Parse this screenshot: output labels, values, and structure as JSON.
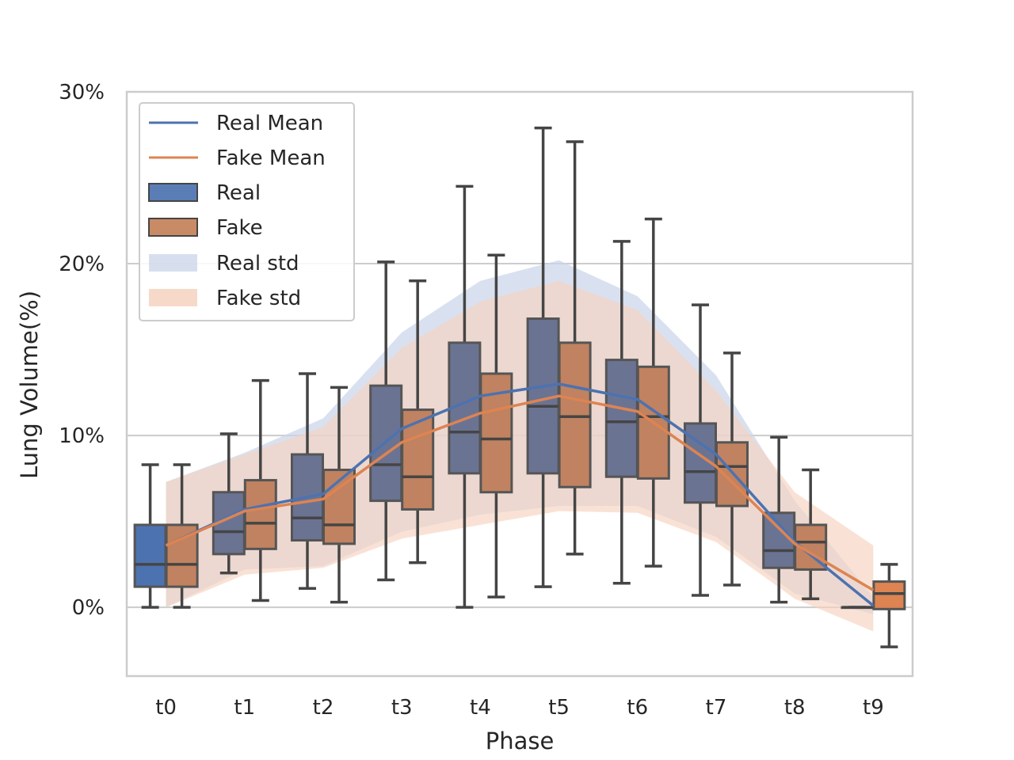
{
  "chart_data": {
    "type": "box",
    "xlabel": "Phase",
    "ylabel": "Lung Volume(%)",
    "ylim": [
      -4,
      30
    ],
    "yticks": [
      0,
      10,
      20,
      30
    ],
    "ytick_labels": [
      "0%",
      "10%",
      "20%",
      "30%"
    ],
    "categories": [
      "t0",
      "t1",
      "t2",
      "t3",
      "t4",
      "t5",
      "t6",
      "t7",
      "t8",
      "t9"
    ],
    "grid": true,
    "legend_position": "upper-left",
    "legend": [
      "Real Mean",
      "Fake Mean",
      "Real",
      "Fake",
      "Real std",
      "Fake std"
    ],
    "colors": {
      "real_box": "#6b7393",
      "real_box_t0": "#4c72b0",
      "fake_box": "#c08260",
      "fake_box_t9": "#dd8452",
      "real_line": "#4c72b0",
      "fake_line": "#dd8452",
      "real_std": "#c9d4ea",
      "fake_std": "#f6d2bf",
      "whisker": "#454545",
      "grid": "#cccccc"
    },
    "real_boxes": [
      {
        "min": 0.0,
        "q1": 1.2,
        "median": 2.5,
        "q3": 4.8,
        "max": 8.3
      },
      {
        "min": 2.0,
        "q1": 3.1,
        "median": 4.4,
        "q3": 6.7,
        "max": 10.1
      },
      {
        "min": 1.1,
        "q1": 3.9,
        "median": 5.2,
        "q3": 8.9,
        "max": 13.6
      },
      {
        "min": 1.6,
        "q1": 6.2,
        "median": 8.3,
        "q3": 12.9,
        "max": 20.1
      },
      {
        "min": 0.0,
        "q1": 7.8,
        "median": 10.2,
        "q3": 15.4,
        "max": 24.5
      },
      {
        "min": 1.2,
        "q1": 7.8,
        "median": 11.7,
        "q3": 16.8,
        "max": 27.9
      },
      {
        "min": 1.4,
        "q1": 7.6,
        "median": 10.8,
        "q3": 14.4,
        "max": 21.3
      },
      {
        "min": 0.7,
        "q1": 6.1,
        "median": 7.9,
        "q3": 10.7,
        "max": 17.6
      },
      {
        "min": 0.3,
        "q1": 2.3,
        "median": 3.3,
        "q3": 5.5,
        "max": 9.9
      },
      {
        "min": 0.0,
        "q1": 0.0,
        "median": 0.0,
        "q3": 0.0,
        "max": 0.0
      }
    ],
    "fake_boxes": [
      {
        "min": 0.0,
        "q1": 1.2,
        "median": 2.5,
        "q3": 4.8,
        "max": 8.3
      },
      {
        "min": 0.4,
        "q1": 3.4,
        "median": 4.9,
        "q3": 7.4,
        "max": 13.2
      },
      {
        "min": 0.3,
        "q1": 3.7,
        "median": 4.8,
        "q3": 8.0,
        "max": 12.8
      },
      {
        "min": 2.6,
        "q1": 5.7,
        "median": 7.6,
        "q3": 11.5,
        "max": 19.0
      },
      {
        "min": 0.6,
        "q1": 6.7,
        "median": 9.8,
        "q3": 13.6,
        "max": 20.5
      },
      {
        "min": 3.1,
        "q1": 7.0,
        "median": 11.1,
        "q3": 15.4,
        "max": 27.1
      },
      {
        "min": 2.4,
        "q1": 7.5,
        "median": 11.1,
        "q3": 14.0,
        "max": 22.6
      },
      {
        "min": 1.3,
        "q1": 5.9,
        "median": 8.2,
        "q3": 9.6,
        "max": 14.8
      },
      {
        "min": 0.5,
        "q1": 2.2,
        "median": 3.8,
        "q3": 4.8,
        "max": 8.0
      },
      {
        "min": -2.3,
        "q1": -0.1,
        "median": 0.8,
        "q3": 1.5,
        "max": 2.5
      }
    ],
    "real_mean": [
      3.6,
      5.7,
      6.6,
      10.4,
      12.3,
      13.0,
      12.1,
      8.9,
      3.8,
      0.1
    ],
    "fake_mean": [
      3.6,
      5.6,
      6.3,
      9.6,
      11.3,
      12.3,
      11.4,
      8.2,
      3.7,
      1.0
    ],
    "real_std": {
      "upper": [
        7.3,
        9.0,
        11.0,
        16.0,
        19.0,
        20.2,
        18.1,
        13.5,
        6.2,
        0.6
      ],
      "lower": [
        0.0,
        2.2,
        2.4,
        4.4,
        5.4,
        5.9,
        5.9,
        4.1,
        0.8,
        -0.4
      ]
    },
    "fake_std": {
      "upper": [
        7.3,
        8.9,
        10.5,
        15.1,
        17.8,
        19.0,
        17.3,
        12.6,
        6.7,
        3.6
      ],
      "lower": [
        0.0,
        1.9,
        2.3,
        4.0,
        4.8,
        5.6,
        5.5,
        3.8,
        0.5,
        -1.4
      ]
    }
  }
}
